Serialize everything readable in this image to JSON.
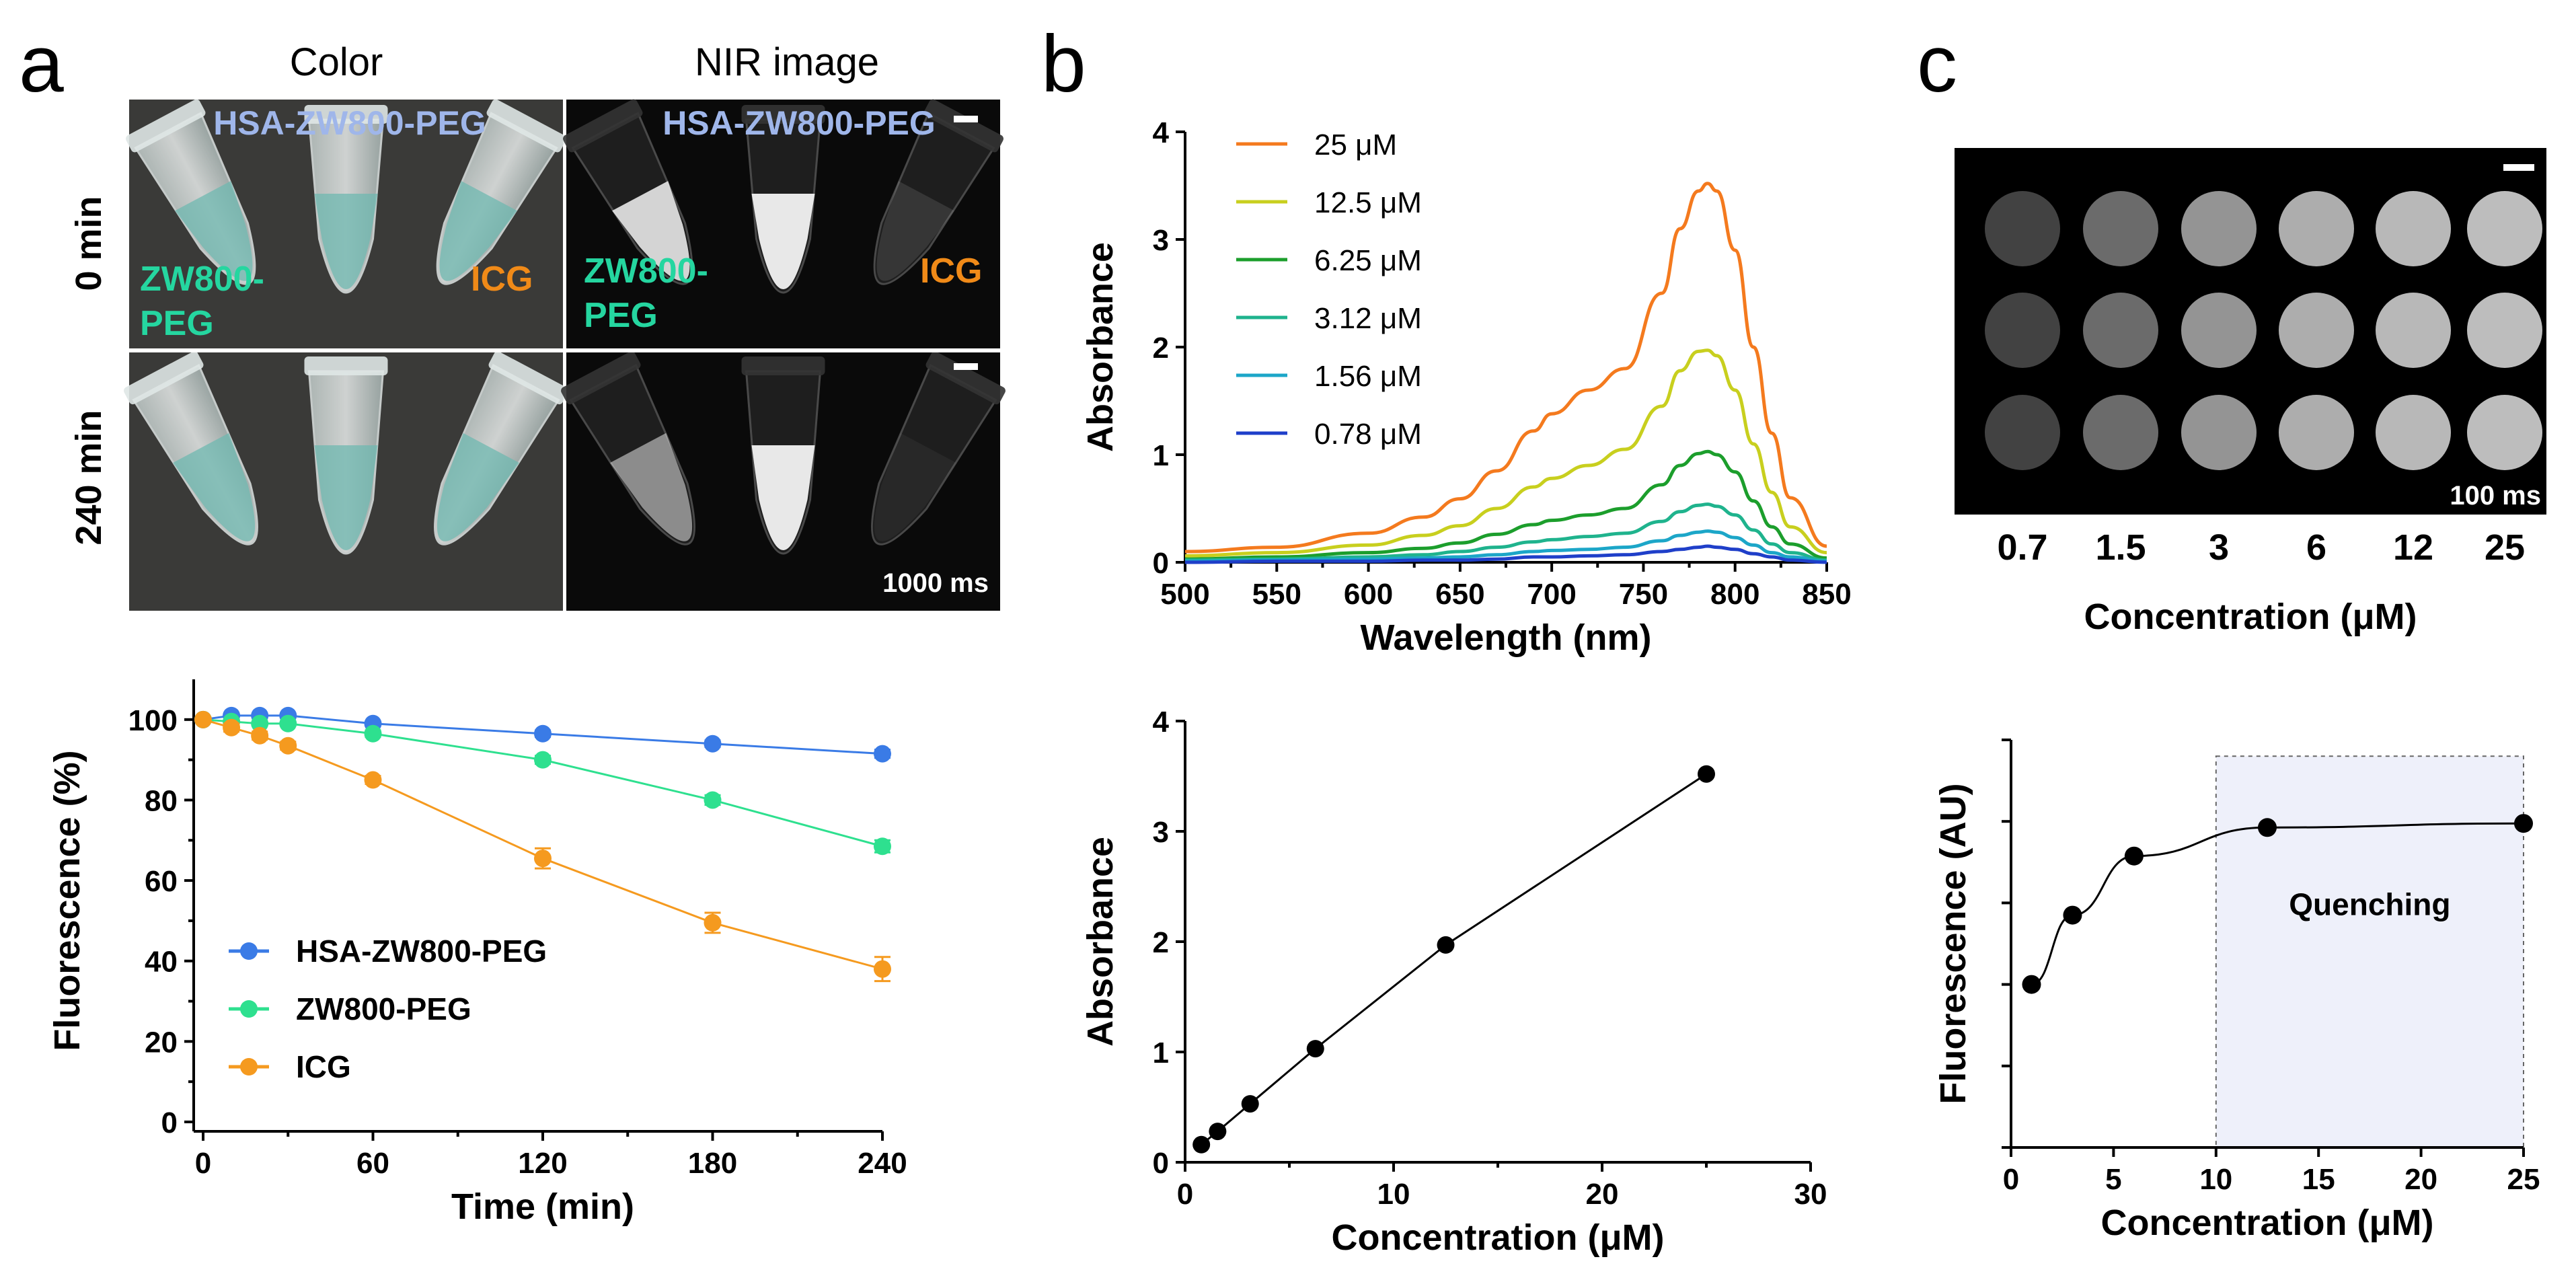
{
  "panels": {
    "a": {
      "letter": "a"
    },
    "b": {
      "letter": "b"
    },
    "c": {
      "letter": "c"
    }
  },
  "photos": {
    "col_color": "Color",
    "col_nir": "NIR image",
    "row_0": "0 min",
    "row_240": "240 min",
    "label_hsa": "HSA-ZW800-PEG",
    "label_zw_1": "ZW800-",
    "label_zw_2": "PEG",
    "label_icg": "ICG",
    "exposure_nir": "1000 ms",
    "exposure_wells": "100 ms",
    "well_concentrations": [
      "0.7",
      "1.5",
      "3",
      "6",
      "12",
      "25"
    ],
    "well_axis_label": "Concentration (μM)",
    "well_brightness": [
      0.26,
      0.42,
      0.58,
      0.68,
      0.72,
      0.74
    ]
  },
  "colors": {
    "hsa": "#3a7be6",
    "zw": "#2ee08f",
    "icg": "#f59a1f",
    "hsa_text": "#9fb6ea",
    "zw_text": "#25d6a0",
    "icg_text": "#f08a18",
    "shade": "#eef0fa"
  },
  "chart_data": [
    {
      "id": "fluorescence-stability",
      "type": "line",
      "title": "",
      "xlabel": "Time (min)",
      "ylabel": "Fluorescence (%)",
      "x": [
        0,
        10,
        20,
        30,
        60,
        120,
        180,
        240
      ],
      "xlim": [
        0,
        240
      ],
      "ylim": [
        0,
        110
      ],
      "xticks": [
        0,
        60,
        120,
        180,
        240
      ],
      "yticks": [
        0,
        20,
        40,
        60,
        80,
        100
      ],
      "legend_position": "bottom-left",
      "series": [
        {
          "name": "HSA-ZW800-PEG",
          "color": "#3a7be6",
          "values": [
            100,
            101,
            101,
            101,
            99,
            96.5,
            94,
            91.5
          ],
          "err": [
            0,
            0.5,
            0.5,
            0.5,
            0.5,
            0.8,
            0.8,
            1
          ]
        },
        {
          "name": "ZW800-PEG",
          "color": "#2ee08f",
          "values": [
            100,
            99.5,
            99,
            99,
            96.5,
            90,
            80,
            68.5
          ],
          "err": [
            0,
            0.5,
            0.5,
            0.5,
            0.8,
            1,
            1.2,
            1.5
          ]
        },
        {
          "name": "ICG",
          "color": "#f59a1f",
          "values": [
            100,
            98,
            96,
            93.5,
            85,
            65.5,
            49.5,
            38
          ],
          "err": [
            0,
            1,
            1,
            1,
            1,
            2.5,
            2.5,
            3
          ]
        }
      ]
    },
    {
      "id": "absorbance-spectra",
      "type": "line",
      "title": "",
      "xlabel": "Wavelength (nm)",
      "ylabel": "Absorbance",
      "x": [
        500,
        550,
        600,
        630,
        650,
        670,
        690,
        700,
        720,
        740,
        760,
        770,
        780,
        785,
        790,
        800,
        810,
        820,
        830,
        850
      ],
      "xlim": [
        500,
        850
      ],
      "ylim": [
        0,
        4
      ],
      "xticks": [
        500,
        550,
        600,
        650,
        700,
        750,
        800,
        850
      ],
      "yticks": [
        0,
        1,
        2,
        3,
        4
      ],
      "legend_position": "top-left",
      "series": [
        {
          "name": "25 μM",
          "color": "#f47a1e",
          "values": [
            0.1,
            0.14,
            0.27,
            0.42,
            0.59,
            0.85,
            1.22,
            1.38,
            1.6,
            1.8,
            2.5,
            3.1,
            3.45,
            3.52,
            3.45,
            2.9,
            2.0,
            1.2,
            0.6,
            0.15
          ]
        },
        {
          "name": "12.5 μM",
          "color": "#c8cf1e",
          "values": [
            0.06,
            0.09,
            0.16,
            0.25,
            0.34,
            0.5,
            0.7,
            0.78,
            0.9,
            1.05,
            1.45,
            1.78,
            1.96,
            1.97,
            1.92,
            1.6,
            1.1,
            0.65,
            0.33,
            0.09
          ]
        },
        {
          "name": "6.25 μM",
          "color": "#1c9e2c",
          "values": [
            0.03,
            0.05,
            0.09,
            0.13,
            0.18,
            0.26,
            0.35,
            0.39,
            0.44,
            0.5,
            0.72,
            0.9,
            1.01,
            1.03,
            1.0,
            0.84,
            0.57,
            0.33,
            0.17,
            0.04
          ]
        },
        {
          "name": "3.12 μM",
          "color": "#1fb38d",
          "values": [
            0.02,
            0.03,
            0.05,
            0.07,
            0.1,
            0.14,
            0.19,
            0.21,
            0.24,
            0.27,
            0.38,
            0.47,
            0.53,
            0.54,
            0.52,
            0.44,
            0.3,
            0.17,
            0.09,
            0.02
          ]
        },
        {
          "name": "1.56 μM",
          "color": "#1ca6c8",
          "values": [
            0.01,
            0.02,
            0.03,
            0.04,
            0.05,
            0.07,
            0.1,
            0.11,
            0.12,
            0.14,
            0.2,
            0.25,
            0.28,
            0.29,
            0.28,
            0.23,
            0.16,
            0.09,
            0.05,
            0.01
          ]
        },
        {
          "name": "0.78 μM",
          "color": "#1f3fc9",
          "values": [
            0.0,
            0.01,
            0.01,
            0.02,
            0.02,
            0.03,
            0.05,
            0.05,
            0.06,
            0.07,
            0.1,
            0.12,
            0.14,
            0.15,
            0.14,
            0.12,
            0.08,
            0.05,
            0.02,
            0.0
          ]
        }
      ]
    },
    {
      "id": "absorbance-vs-concentration",
      "type": "line",
      "title": "",
      "xlabel": "Concentration (μM)",
      "ylabel": "Absorbance",
      "x": [
        0.78,
        1.56,
        3.12,
        6.25,
        12.5,
        25
      ],
      "xlim": [
        0,
        30
      ],
      "ylim": [
        0,
        4
      ],
      "xticks": [
        0,
        10,
        20,
        30
      ],
      "yticks": [
        0,
        1,
        2,
        3,
        4
      ],
      "series": [
        {
          "name": "Absorbance",
          "color": "#000000",
          "values": [
            0.16,
            0.28,
            0.53,
            1.03,
            1.97,
            3.52
          ]
        }
      ]
    },
    {
      "id": "fluorescence-vs-concentration",
      "type": "line",
      "title": "",
      "xlabel": "Concentration (μM)",
      "ylabel": "Fluorescence (AU)",
      "x": [
        1,
        3,
        6,
        12.5,
        25
      ],
      "xlim": [
        0,
        25
      ],
      "ylim": [
        0,
        100
      ],
      "xticks": [
        0,
        5,
        10,
        15,
        20,
        25
      ],
      "yticks": [
        0,
        20,
        40,
        60,
        80,
        100
      ],
      "annotation": "Quenching",
      "shade_range": [
        10,
        25
      ],
      "series": [
        {
          "name": "Fluorescence",
          "color": "#000000",
          "values": [
            40,
            57,
            71.5,
            78.5,
            79.5
          ]
        }
      ]
    }
  ]
}
